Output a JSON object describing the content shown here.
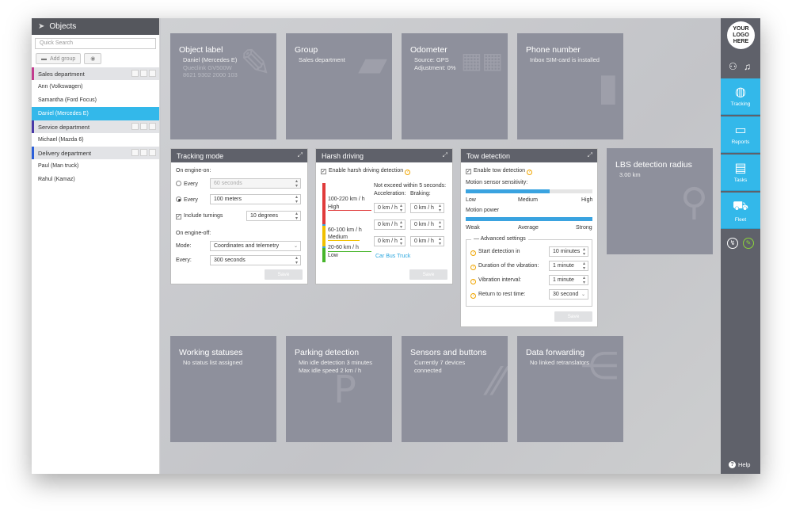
{
  "sidebar": {
    "title": "Objects",
    "search_placeholder": "Quick Search",
    "add_group": "Add group",
    "groups": [
      {
        "name": "Sales department",
        "color": "#c23c8f",
        "items": [
          "Ann (Volkswagen)",
          "Samantha (Ford Focus)",
          "Daniel (Mercedes E)"
        ]
      },
      {
        "name": "Service department",
        "color": "#4a3aa8",
        "items": [
          "Michael (Mazda 6)"
        ]
      },
      {
        "name": "Delivery department",
        "color": "#2b5fd9",
        "items": [
          "Paul (Man truck)",
          "Rahul (Kamaz)"
        ]
      }
    ],
    "active_item": "Daniel (Mercedes E)"
  },
  "tiles": {
    "object_label": {
      "title": "Object label",
      "sub": "Daniel (Mercedes E)",
      "faded1": "Queclink GV500W",
      "faded2": "8621 9302 2000 103"
    },
    "group": {
      "title": "Group",
      "sub": "Sales department"
    },
    "odometer": {
      "title": "Odometer",
      "sub1": "Source: GPS",
      "sub2": "Adjustment: 0%"
    },
    "phone": {
      "title": "Phone number",
      "sub": "Inbox SIM-card is installed"
    },
    "lbs": {
      "title": "LBS detection radius",
      "sub": "3.00 km"
    },
    "working": {
      "title": "Working statuses",
      "sub": "No status list assigned"
    },
    "parking": {
      "title": "Parking detection",
      "sub1": "Min idle detection 3 minutes",
      "sub2": "Max idle speed 2 km / h"
    },
    "sensors": {
      "title": "Sensors and buttons",
      "sub1": "Currently 7 devices",
      "sub2": "connected"
    },
    "forwarding": {
      "title": "Data forwarding",
      "sub": "No linked retranslators"
    }
  },
  "tracking": {
    "title": "Tracking mode",
    "engine_on": "On engine-on:",
    "every": "Every",
    "every_seconds": "60  seconds",
    "every_meters": "100  meters",
    "include_turnings": "Include turnings",
    "turn_degrees": "10  degrees",
    "engine_off": "On engine-off:",
    "mode_label": "Mode:",
    "mode_value": "Coordinates and telemetry",
    "every2_label": "Every:",
    "every2_value": "300  seconds",
    "save": "Save"
  },
  "harsh": {
    "title": "Harsh driving",
    "enable": "Enable harsh driving detection",
    "not_exceed": "Not exceed within 5 seconds:",
    "acceleration": "Acceleration:",
    "braking": "Braking:",
    "high_range": "100-220 km / h",
    "high": "High",
    "medium_range": "60-100 km / h",
    "medium": "Medium",
    "low_range": "20-60 km / h",
    "low": "Low",
    "value": "0  km / h",
    "car": "Car",
    "bus": "Bus",
    "truck": "Truck",
    "save": "Save"
  },
  "tow": {
    "title": "Tow detection",
    "enable": "Enable tow detection",
    "sensitivity": "Motion sensor sensitivity:",
    "sens_levels": [
      "Low",
      "Medium",
      "High"
    ],
    "power": "Motion power",
    "power_levels": [
      "Weak",
      "Average",
      "Strong"
    ],
    "sensitivity_level": 0.66,
    "power_level": 1.0,
    "advanced": "Advanced settings",
    "start_detection": "Start detection in",
    "start_value": "10  minutes",
    "duration": "Duration of the vibration:",
    "duration_value": "1  minute",
    "interval": "Vibration interval:",
    "interval_value": "1  minute",
    "return": "Return to rest time:",
    "return_value": "30  second",
    "save": "Save"
  },
  "rail": {
    "logo": "YOUR LOGO HERE",
    "items": [
      {
        "label": "Tracking",
        "icon": "globe-icon"
      },
      {
        "label": "Reports",
        "icon": "presentation-icon"
      },
      {
        "label": "Tasks",
        "icon": "clipboard-icon"
      },
      {
        "label": "Fleet",
        "icon": "truck-icon"
      }
    ],
    "help": "Help"
  }
}
